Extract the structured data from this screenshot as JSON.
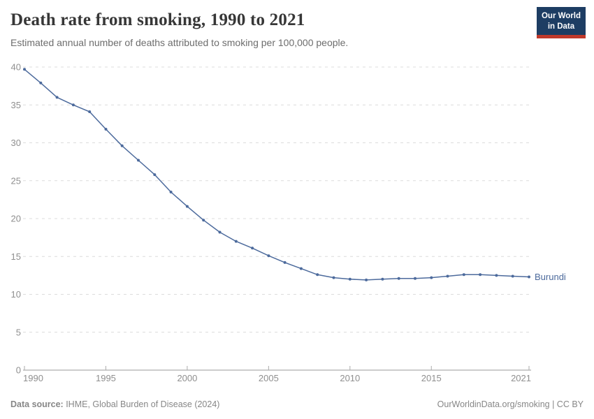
{
  "header": {
    "title": "Death rate from smoking, 1990 to 2021",
    "subtitle": "Estimated annual number of deaths attributed to smoking per 100,000 people.",
    "logo": {
      "line1": "Our World",
      "line2": "in Data"
    }
  },
  "chart_data": {
    "type": "line",
    "title": "Death rate from smoking, 1990 to 2021",
    "subtitle": "Estimated annual number of deaths attributed to smoking per 100,000 people.",
    "xlabel": "",
    "ylabel": "",
    "xlim": [
      1990,
      2021
    ],
    "ylim": [
      0,
      40
    ],
    "yticks": [
      0,
      5,
      10,
      15,
      20,
      25,
      30,
      35,
      40
    ],
    "xticks": [
      1990,
      1995,
      2000,
      2005,
      2010,
      2015,
      2021
    ],
    "grid": "horizontal-dashed",
    "legend_position": "end-of-line-label",
    "series": [
      {
        "name": "Burundi",
        "color": "#4C6A9C",
        "x": [
          1990,
          1991,
          1992,
          1993,
          1994,
          1995,
          1996,
          1997,
          1998,
          1999,
          2000,
          2001,
          2002,
          2003,
          2004,
          2005,
          2006,
          2007,
          2008,
          2009,
          2010,
          2011,
          2012,
          2013,
          2014,
          2015,
          2016,
          2017,
          2018,
          2019,
          2020,
          2021
        ],
        "values": [
          39.7,
          37.9,
          36.0,
          35.0,
          34.1,
          31.8,
          29.6,
          27.7,
          25.8,
          23.5,
          21.6,
          19.8,
          18.2,
          17.0,
          16.1,
          15.1,
          14.2,
          13.4,
          12.6,
          12.2,
          12.0,
          11.9,
          12.0,
          12.1,
          12.1,
          12.2,
          12.4,
          12.6,
          12.6,
          12.5,
          12.4,
          12.3
        ]
      }
    ]
  },
  "footer": {
    "source_label": "Data source:",
    "source_text": " IHME, Global Burden of Disease (2024)",
    "credit": "OurWorldinData.org/smoking | CC BY"
  },
  "colors": {
    "line": "#4C6A9C",
    "grid": "#dcdcdc",
    "axis": "#999999",
    "tick": "#ababab",
    "tick_label": "#8f8f8f",
    "title": "#373737",
    "subtitle": "#6d6d6d",
    "footer": "#878787",
    "logo_bg": "#1d3d63",
    "logo_red": "#c0392b",
    "logo_text": "#ffffff"
  }
}
